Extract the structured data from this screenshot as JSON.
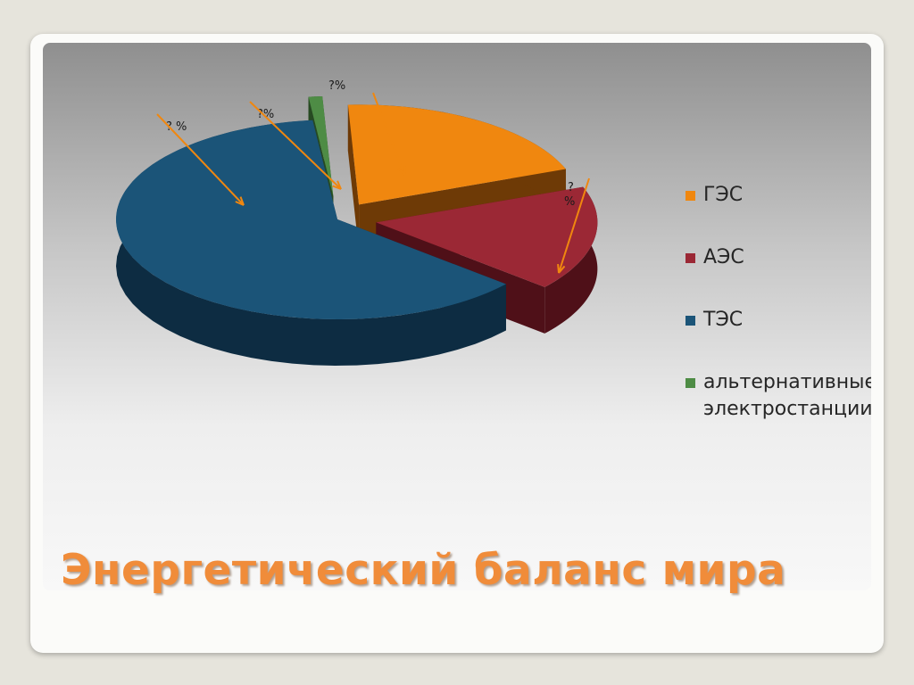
{
  "slide": {
    "title": "Энергетический баланс мира"
  },
  "chart_data": {
    "type": "pie",
    "style": "3d-exploded",
    "categories": [
      "ГЭС",
      "АЭС",
      "ТЭС",
      "альтернативные\nэлектростанции"
    ],
    "values": [
      20,
      17,
      62,
      1
    ],
    "colors": [
      "#f0870f",
      "#9b2835",
      "#1b5478",
      "#4e8c45"
    ],
    "side_colors": [
      "#6e3a06",
      "#4f1018",
      "#0d2c42",
      "#274a22"
    ],
    "annotations": [
      "?%",
      "? %",
      "? %",
      "?%"
    ],
    "legend_position": "right"
  }
}
